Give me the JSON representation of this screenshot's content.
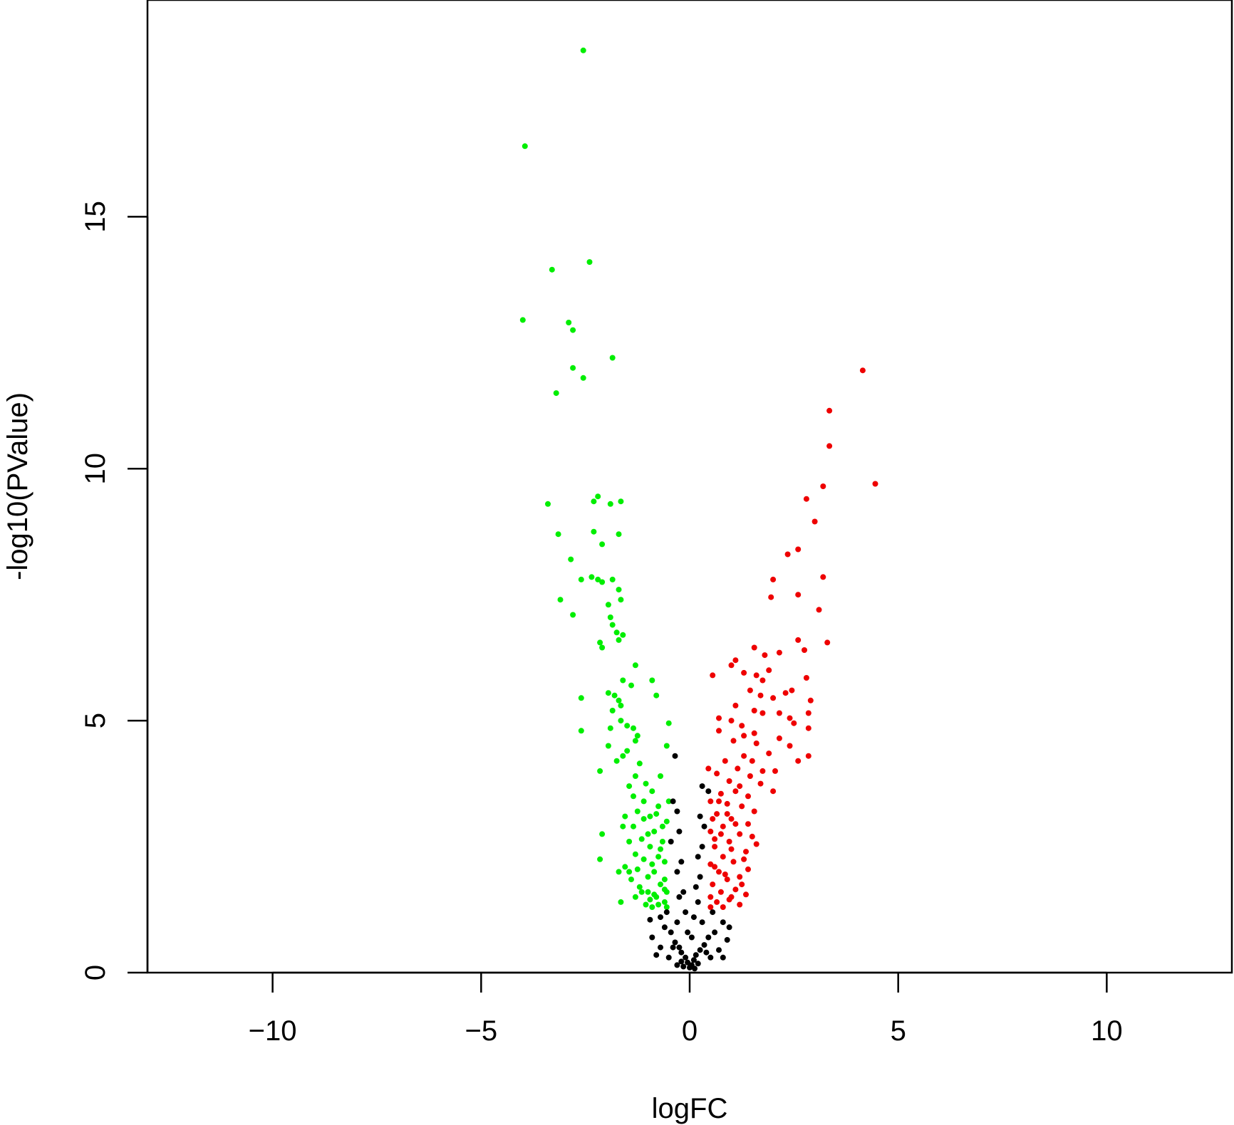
{
  "chart_data": {
    "type": "scatter",
    "title": "",
    "xlabel": "logFC",
    "ylabel": "-log10(PValue)",
    "xlim": [
      -13,
      13
    ],
    "ylim": [
      0,
      19.3
    ],
    "x_ticks": [
      -10,
      -5,
      0,
      5,
      10
    ],
    "x_tick_labels": [
      "−10",
      "−5",
      "0",
      "5",
      "10"
    ],
    "y_ticks": [
      0,
      5,
      10,
      15
    ],
    "y_tick_labels": [
      "0",
      "5",
      "10",
      "15"
    ],
    "grid": false,
    "legend": "none",
    "series": [
      {
        "color": "#00ee00",
        "points": [
          [
            -2.55,
            18.3
          ],
          [
            -3.95,
            16.4
          ],
          [
            -2.4,
            14.1
          ],
          [
            -3.3,
            13.95
          ],
          [
            -4.0,
            12.95
          ],
          [
            -2.9,
            12.9
          ],
          [
            -2.8,
            12.75
          ],
          [
            -1.85,
            12.2
          ],
          [
            -2.8,
            12.0
          ],
          [
            -2.55,
            11.8
          ],
          [
            -3.2,
            11.5
          ],
          [
            -3.4,
            9.3
          ],
          [
            -2.2,
            9.45
          ],
          [
            -2.3,
            9.35
          ],
          [
            -1.65,
            9.35
          ],
          [
            -1.9,
            9.3
          ],
          [
            -3.15,
            8.7
          ],
          [
            -2.3,
            8.75
          ],
          [
            -1.7,
            8.7
          ],
          [
            -2.1,
            8.5
          ],
          [
            -2.85,
            8.2
          ],
          [
            -2.6,
            7.8
          ],
          [
            -2.35,
            7.85
          ],
          [
            -2.2,
            7.8
          ],
          [
            -2.1,
            7.75
          ],
          [
            -1.85,
            7.8
          ],
          [
            -1.7,
            7.6
          ],
          [
            -1.65,
            7.4
          ],
          [
            -3.1,
            7.4
          ],
          [
            -1.95,
            7.3
          ],
          [
            -2.8,
            7.1
          ],
          [
            -1.9,
            7.05
          ],
          [
            -1.85,
            6.9
          ],
          [
            -1.75,
            6.75
          ],
          [
            -1.6,
            6.7
          ],
          [
            -1.7,
            6.6
          ],
          [
            -2.15,
            6.55
          ],
          [
            -2.1,
            6.45
          ],
          [
            -1.3,
            6.1
          ],
          [
            -2.6,
            5.45
          ],
          [
            -1.6,
            5.8
          ],
          [
            -1.4,
            5.7
          ],
          [
            -0.9,
            5.8
          ],
          [
            -1.95,
            5.55
          ],
          [
            -1.8,
            5.5
          ],
          [
            -1.7,
            5.4
          ],
          [
            -1.65,
            5.3
          ],
          [
            -0.8,
            5.5
          ],
          [
            -1.85,
            5.2
          ],
          [
            -1.65,
            5.0
          ],
          [
            -2.6,
            4.8
          ],
          [
            -1.5,
            4.9
          ],
          [
            -1.35,
            4.85
          ],
          [
            -1.25,
            4.7
          ],
          [
            -1.9,
            4.85
          ],
          [
            -0.5,
            4.95
          ],
          [
            -1.3,
            4.6
          ],
          [
            -1.95,
            4.5
          ],
          [
            -1.5,
            4.4
          ],
          [
            -1.6,
            4.3
          ],
          [
            -1.75,
            4.2
          ],
          [
            -2.15,
            4.0
          ],
          [
            -0.55,
            4.5
          ],
          [
            -1.2,
            4.15
          ],
          [
            -1.45,
            3.7
          ],
          [
            -1.35,
            3.5
          ],
          [
            -1.3,
            3.9
          ],
          [
            -1.05,
            3.75
          ],
          [
            -0.7,
            3.9
          ],
          [
            -1.1,
            3.4
          ],
          [
            -0.9,
            3.6
          ],
          [
            -0.5,
            3.4
          ],
          [
            -1.25,
            3.2
          ],
          [
            -0.95,
            3.1
          ],
          [
            -0.75,
            3.3
          ],
          [
            -0.55,
            3.0
          ],
          [
            -1.55,
            3.1
          ],
          [
            -1.35,
            2.9
          ],
          [
            -1.6,
            2.9
          ],
          [
            -0.85,
            2.8
          ],
          [
            -1.15,
            2.65
          ],
          [
            -1.45,
            2.6
          ],
          [
            -2.1,
            2.75
          ],
          [
            -0.65,
            2.6
          ],
          [
            -0.95,
            2.5
          ],
          [
            -1.3,
            2.35
          ],
          [
            -1.1,
            2.25
          ],
          [
            -0.75,
            2.3
          ],
          [
            -0.6,
            2.2
          ],
          [
            -2.15,
            2.25
          ],
          [
            -1.55,
            2.1
          ],
          [
            -1.7,
            2.0
          ],
          [
            -1.45,
            2.0
          ],
          [
            -0.85,
            2.0
          ],
          [
            -1.0,
            1.9
          ],
          [
            -0.6,
            1.85
          ],
          [
            -0.7,
            1.75
          ],
          [
            -1.2,
            1.7
          ],
          [
            -0.55,
            1.6
          ],
          [
            -1.3,
            1.5
          ],
          [
            -0.8,
            1.5
          ],
          [
            -1.65,
            1.4
          ],
          [
            -0.95,
            1.45
          ],
          [
            -0.6,
            1.4
          ],
          [
            -1.05,
            1.35
          ],
          [
            -0.75,
            1.35
          ],
          [
            -0.55,
            1.3
          ],
          [
            -0.9,
            1.3
          ],
          [
            -1.15,
            1.6
          ],
          [
            -0.65,
            2.9
          ],
          [
            -0.8,
            3.15
          ],
          [
            -1.0,
            2.75
          ],
          [
            -1.1,
            3.05
          ],
          [
            -0.7,
            2.45
          ],
          [
            -0.9,
            2.15
          ],
          [
            -0.6,
            1.65
          ],
          [
            -1.25,
            2.05
          ],
          [
            -0.85,
            1.55
          ],
          [
            -1.4,
            1.85
          ],
          [
            -1.0,
            1.6
          ]
        ]
      },
      {
        "color": "#ee0000",
        "points": [
          [
            4.15,
            11.95
          ],
          [
            3.35,
            11.15
          ],
          [
            3.35,
            10.45
          ],
          [
            4.45,
            9.7
          ],
          [
            3.2,
            9.65
          ],
          [
            2.8,
            9.4
          ],
          [
            3.0,
            8.95
          ],
          [
            2.6,
            8.4
          ],
          [
            2.35,
            8.3
          ],
          [
            3.2,
            7.85
          ],
          [
            2.0,
            7.8
          ],
          [
            1.95,
            7.45
          ],
          [
            2.6,
            7.5
          ],
          [
            3.1,
            7.2
          ],
          [
            3.3,
            6.55
          ],
          [
            2.6,
            6.6
          ],
          [
            2.75,
            6.4
          ],
          [
            1.55,
            6.45
          ],
          [
            1.8,
            6.3
          ],
          [
            2.15,
            6.35
          ],
          [
            1.1,
            6.2
          ],
          [
            1.0,
            6.1
          ],
          [
            1.3,
            5.95
          ],
          [
            0.55,
            5.9
          ],
          [
            1.6,
            5.9
          ],
          [
            1.9,
            6.0
          ],
          [
            1.75,
            5.8
          ],
          [
            2.8,
            5.85
          ],
          [
            1.45,
            5.6
          ],
          [
            1.7,
            5.5
          ],
          [
            2.0,
            5.45
          ],
          [
            2.3,
            5.55
          ],
          [
            2.45,
            5.6
          ],
          [
            2.9,
            5.4
          ],
          [
            1.1,
            5.3
          ],
          [
            1.55,
            5.2
          ],
          [
            1.75,
            5.15
          ],
          [
            2.15,
            5.15
          ],
          [
            2.4,
            5.05
          ],
          [
            2.85,
            5.15
          ],
          [
            0.7,
            5.05
          ],
          [
            1.0,
            5.0
          ],
          [
            1.25,
            4.9
          ],
          [
            2.5,
            4.95
          ],
          [
            2.85,
            4.85
          ],
          [
            0.7,
            4.8
          ],
          [
            1.3,
            4.7
          ],
          [
            1.55,
            4.75
          ],
          [
            2.15,
            4.65
          ],
          [
            2.4,
            4.5
          ],
          [
            1.6,
            4.55
          ],
          [
            1.05,
            4.6
          ],
          [
            1.9,
            4.35
          ],
          [
            2.85,
            4.3
          ],
          [
            2.6,
            4.2
          ],
          [
            1.3,
            4.3
          ],
          [
            1.5,
            4.2
          ],
          [
            0.85,
            4.2
          ],
          [
            1.15,
            4.05
          ],
          [
            1.75,
            4.0
          ],
          [
            2.05,
            4.0
          ],
          [
            1.45,
            3.9
          ],
          [
            0.45,
            4.05
          ],
          [
            0.65,
            3.95
          ],
          [
            0.95,
            3.8
          ],
          [
            1.2,
            3.7
          ],
          [
            1.7,
            3.75
          ],
          [
            2.0,
            3.6
          ],
          [
            1.1,
            3.6
          ],
          [
            0.75,
            3.55
          ],
          [
            1.4,
            3.5
          ],
          [
            0.5,
            3.4
          ],
          [
            0.9,
            3.35
          ],
          [
            1.25,
            3.3
          ],
          [
            1.55,
            3.2
          ],
          [
            0.65,
            3.15
          ],
          [
            1.0,
            3.05
          ],
          [
            1.4,
            2.95
          ],
          [
            0.8,
            2.9
          ],
          [
            0.5,
            2.8
          ],
          [
            1.2,
            2.75
          ],
          [
            0.95,
            2.6
          ],
          [
            1.6,
            2.55
          ],
          [
            0.6,
            2.5
          ],
          [
            1.35,
            2.4
          ],
          [
            0.8,
            2.3
          ],
          [
            1.05,
            2.2
          ],
          [
            0.5,
            2.15
          ],
          [
            1.4,
            2.05
          ],
          [
            0.7,
            2.0
          ],
          [
            1.2,
            1.9
          ],
          [
            0.9,
            1.85
          ],
          [
            0.55,
            1.75
          ],
          [
            1.1,
            1.65
          ],
          [
            0.75,
            1.6
          ],
          [
            1.35,
            1.55
          ],
          [
            0.5,
            1.5
          ],
          [
            0.95,
            1.45
          ],
          [
            0.65,
            1.4
          ],
          [
            1.2,
            1.35
          ],
          [
            0.8,
            1.3
          ],
          [
            0.5,
            1.3
          ],
          [
            1.0,
            1.5
          ],
          [
            0.6,
            2.65
          ],
          [
            1.1,
            2.95
          ],
          [
            0.7,
            3.4
          ],
          [
            1.3,
            2.25
          ],
          [
            0.85,
            1.95
          ],
          [
            1.5,
            2.7
          ],
          [
            0.55,
            3.05
          ],
          [
            1.0,
            2.45
          ],
          [
            0.75,
            2.75
          ],
          [
            1.25,
            1.75
          ],
          [
            0.6,
            2.1
          ],
          [
            0.9,
            3.15
          ]
        ]
      },
      {
        "color": "#000000",
        "points": [
          [
            -0.35,
            4.3
          ],
          [
            -0.4,
            3.4
          ],
          [
            0.45,
            3.6
          ],
          [
            0.3,
            3.7
          ],
          [
            0.25,
            3.1
          ],
          [
            -0.3,
            3.2
          ],
          [
            0.35,
            2.9
          ],
          [
            -0.25,
            2.8
          ],
          [
            -0.45,
            2.6
          ],
          [
            0.3,
            2.5
          ],
          [
            0.2,
            2.3
          ],
          [
            -0.2,
            2.2
          ],
          [
            -0.3,
            2.0
          ],
          [
            0.25,
            1.9
          ],
          [
            0.15,
            1.7
          ],
          [
            -0.15,
            1.6
          ],
          [
            -0.25,
            1.5
          ],
          [
            0.2,
            1.4
          ],
          [
            -0.55,
            1.2
          ],
          [
            0.55,
            1.2
          ],
          [
            -0.7,
            1.1
          ],
          [
            0.8,
            1.0
          ],
          [
            -0.95,
            1.05
          ],
          [
            0.95,
            0.9
          ],
          [
            -0.6,
            0.9
          ],
          [
            0.6,
            0.8
          ],
          [
            -0.45,
            0.8
          ],
          [
            0.45,
            0.7
          ],
          [
            -0.9,
            0.7
          ],
          [
            0.9,
            0.65
          ],
          [
            -0.35,
            0.6
          ],
          [
            0.35,
            0.55
          ],
          [
            -0.25,
            0.5
          ],
          [
            0.25,
            0.45
          ],
          [
            -0.2,
            0.4
          ],
          [
            0.15,
            0.35
          ],
          [
            -0.1,
            0.3
          ],
          [
            0.1,
            0.25
          ],
          [
            -0.05,
            0.2
          ],
          [
            0.05,
            0.15
          ],
          [
            0.0,
            0.1
          ],
          [
            -0.15,
            0.12
          ],
          [
            0.12,
            0.08
          ],
          [
            0.2,
            0.18
          ],
          [
            -0.2,
            0.22
          ],
          [
            -0.3,
            1.0
          ],
          [
            0.3,
            1.0
          ],
          [
            -0.4,
            0.5
          ],
          [
            0.4,
            0.4
          ],
          [
            -0.1,
            1.2
          ],
          [
            0.1,
            1.1
          ],
          [
            -0.05,
            0.8
          ],
          [
            0.05,
            0.7
          ],
          [
            -0.5,
            0.3
          ],
          [
            0.5,
            0.3
          ],
          [
            -0.7,
            0.5
          ],
          [
            0.7,
            0.45
          ],
          [
            -0.8,
            0.35
          ],
          [
            0.8,
            0.3
          ],
          [
            -0.3,
            0.15
          ]
        ]
      }
    ]
  }
}
